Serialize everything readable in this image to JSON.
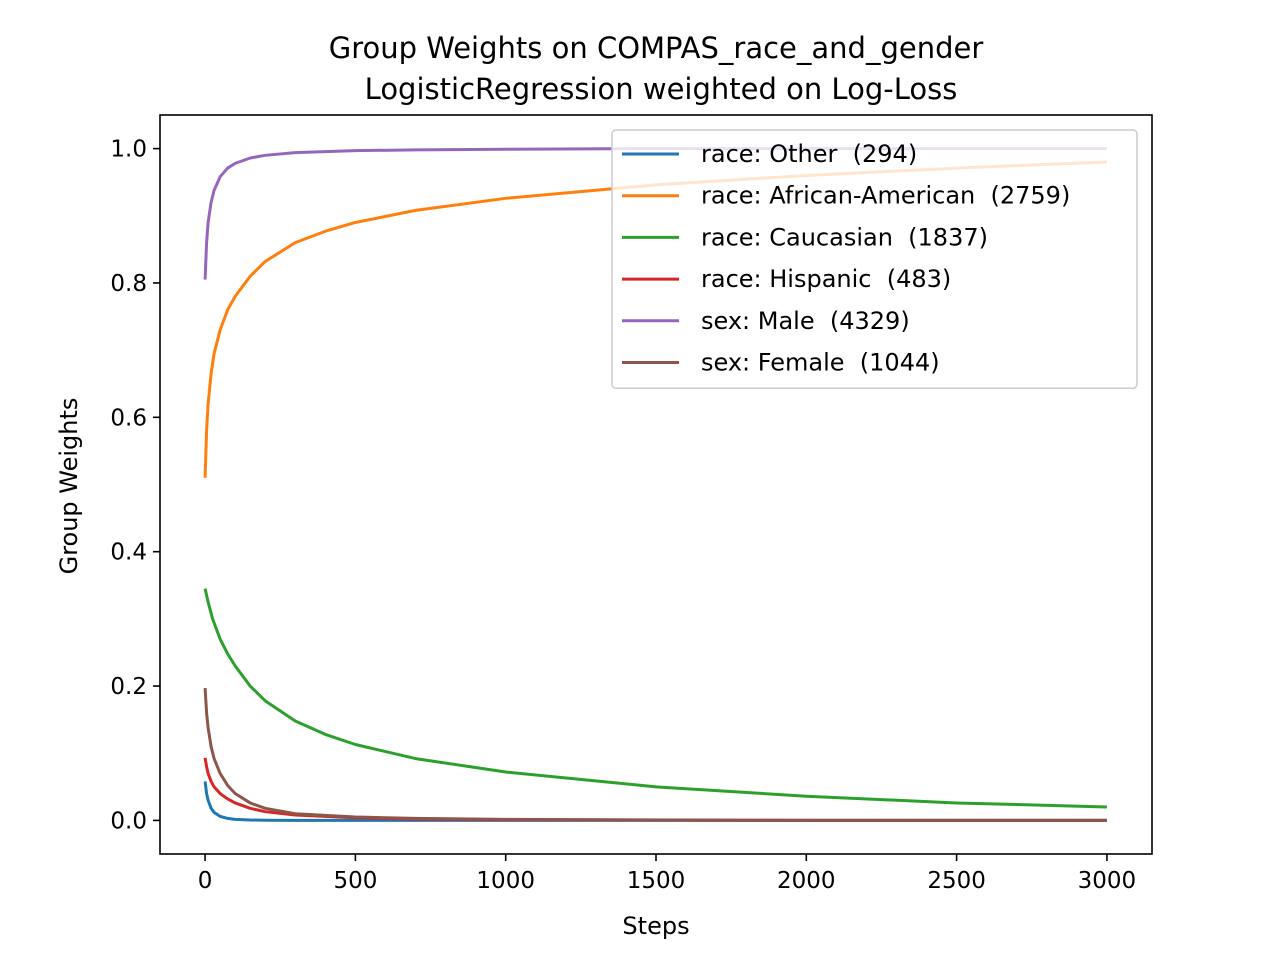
{
  "chart_data": {
    "type": "line",
    "title": "Group Weights on COMPAS_race_and_gender",
    "subtitle": "LogisticRegression weighted on Log-Loss",
    "xlabel": "Steps",
    "ylabel": "Group Weights",
    "xlim": [
      -150,
      3150
    ],
    "ylim": [
      -0.05,
      1.05
    ],
    "xticks": [
      0,
      500,
      1000,
      1500,
      2000,
      2500,
      3000
    ],
    "xtick_labels": [
      "0",
      "500",
      "1000",
      "1500",
      "2000",
      "2500",
      "3000"
    ],
    "yticks": [
      0.0,
      0.2,
      0.4,
      0.6,
      0.8,
      1.0
    ],
    "ytick_labels": [
      "0.0",
      "0.2",
      "0.4",
      "0.6",
      "0.8",
      "1.0"
    ],
    "grid": false,
    "legend_position": "top-right",
    "series": [
      {
        "name": "race: Other  (294)",
        "color": "#1f77b4",
        "x": [
          0,
          5,
          10,
          20,
          30,
          50,
          75,
          100,
          150,
          200,
          300,
          500,
          1000,
          2000,
          3000
        ],
        "y": [
          0.058,
          0.04,
          0.03,
          0.018,
          0.012,
          0.006,
          0.003,
          0.0015,
          0.0006,
          0.0003,
          0.0001,
          0.0,
          0.0,
          0.0,
          0.0
        ]
      },
      {
        "name": "race: African-American  (2759)",
        "color": "#ff7f0e",
        "x": [
          0,
          5,
          10,
          20,
          30,
          50,
          75,
          100,
          150,
          200,
          300,
          400,
          500,
          700,
          1000,
          1500,
          2000,
          2500,
          3000
        ],
        "y": [
          0.51,
          0.58,
          0.62,
          0.665,
          0.695,
          0.73,
          0.76,
          0.78,
          0.81,
          0.832,
          0.86,
          0.877,
          0.89,
          0.908,
          0.926,
          0.946,
          0.96,
          0.971,
          0.98
        ]
      },
      {
        "name": "race: Caucasian  (1837)",
        "color": "#2ca02c",
        "x": [
          0,
          10,
          25,
          50,
          75,
          100,
          150,
          200,
          300,
          400,
          500,
          700,
          1000,
          1500,
          2000,
          2500,
          3000
        ],
        "y": [
          0.345,
          0.325,
          0.3,
          0.27,
          0.248,
          0.23,
          0.2,
          0.178,
          0.148,
          0.128,
          0.113,
          0.092,
          0.072,
          0.05,
          0.036,
          0.026,
          0.02
        ]
      },
      {
        "name": "race: Hispanic  (483)",
        "color": "#d62728",
        "x": [
          0,
          5,
          10,
          20,
          30,
          50,
          75,
          100,
          150,
          200,
          300,
          500,
          700,
          1000,
          2000,
          3000
        ],
        "y": [
          0.093,
          0.08,
          0.07,
          0.058,
          0.05,
          0.04,
          0.032,
          0.026,
          0.018,
          0.013,
          0.008,
          0.004,
          0.002,
          0.001,
          0.0,
          0.0
        ]
      },
      {
        "name": "sex: Male  (4329)",
        "color": "#9467bd",
        "x": [
          0,
          5,
          10,
          20,
          30,
          50,
          75,
          100,
          150,
          200,
          300,
          500,
          700,
          1000,
          1500,
          2000,
          3000
        ],
        "y": [
          0.805,
          0.86,
          0.89,
          0.92,
          0.938,
          0.958,
          0.971,
          0.978,
          0.986,
          0.99,
          0.994,
          0.997,
          0.998,
          0.999,
          1.0,
          1.0,
          1.0
        ]
      },
      {
        "name": "sex: Female  (1044)",
        "color": "#8c564b",
        "x": [
          0,
          5,
          10,
          20,
          30,
          50,
          75,
          100,
          150,
          200,
          300,
          500,
          700,
          1000,
          2000,
          3000
        ],
        "y": [
          0.197,
          0.16,
          0.138,
          0.11,
          0.092,
          0.07,
          0.052,
          0.04,
          0.026,
          0.018,
          0.01,
          0.005,
          0.003,
          0.0015,
          0.0,
          0.0
        ]
      }
    ]
  }
}
